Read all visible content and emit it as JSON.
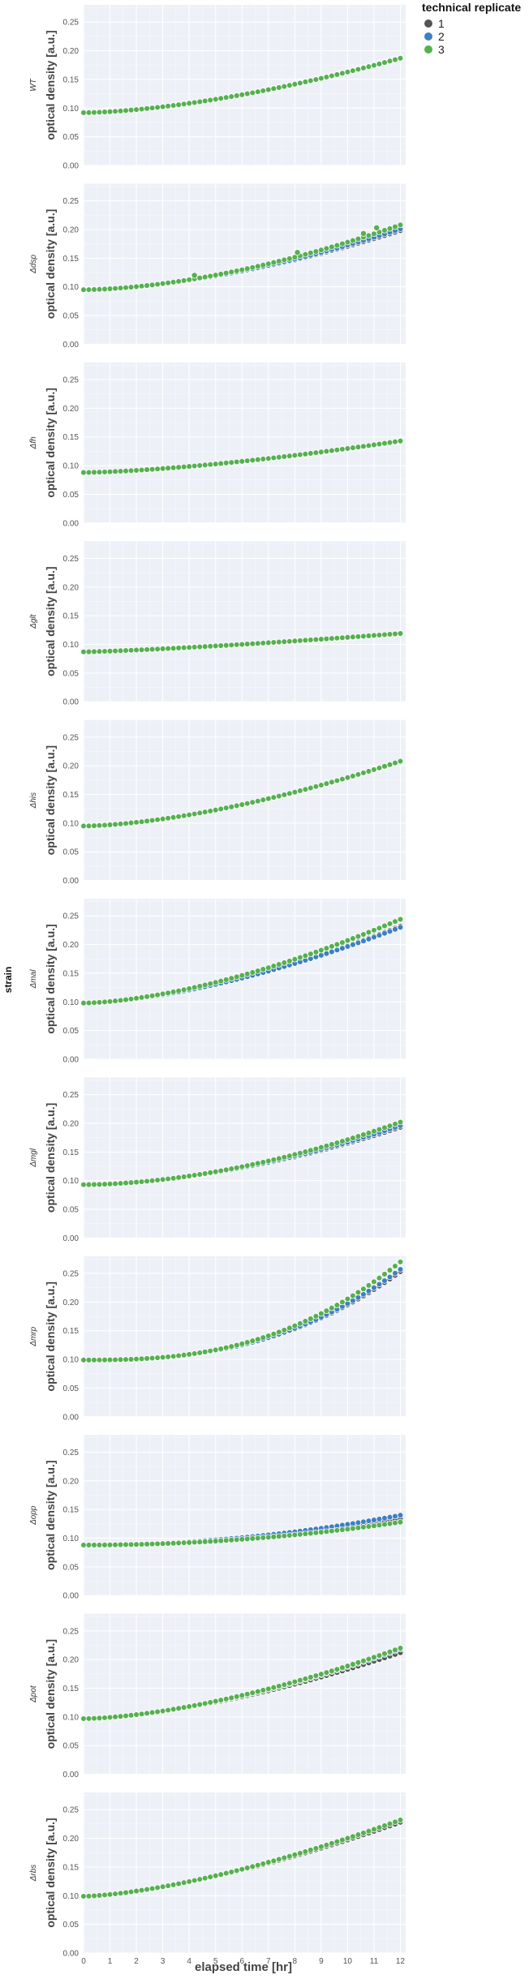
{
  "facet_title": "strain",
  "legend": {
    "title": "technical replicate",
    "entries": [
      {
        "label": "1",
        "color": "#555555"
      },
      {
        "label": "2",
        "color": "#3f7fc4"
      },
      {
        "label": "3",
        "color": "#56b04f"
      }
    ]
  },
  "colors": {
    "panel_bg": "#edf1f7",
    "grid": "#ffffff",
    "marker_edge": "#ffffff"
  },
  "chart_data": {
    "type": "scatter",
    "xlabel": "elapsed time [hr]",
    "ylabel": "optical density [a.u.]",
    "xlim": [
      0,
      12.2
    ],
    "ylim": [
      0,
      0.28
    ],
    "xticks": [
      0,
      1,
      2,
      3,
      4,
      5,
      6,
      7,
      8,
      9,
      10,
      11,
      12
    ],
    "yticks": [
      0.0,
      0.05,
      0.1,
      0.15,
      0.2,
      0.25
    ],
    "x_step_hr": 0.2,
    "grid": true,
    "legend_position": "top-right",
    "facets": [
      {
        "strain": "WT",
        "start": 0.092,
        "end": {
          "1": 0.188,
          "2": 0.188,
          "3": 0.187
        },
        "shape": 1.6
      },
      {
        "strain": "Δdsp",
        "start": 0.095,
        "end": {
          "1": 0.198,
          "2": 0.201,
          "3": 0.208
        },
        "shape": 1.7,
        "outliers": [
          {
            "x": 4.2,
            "y": 0.12,
            "replicate": "3"
          },
          {
            "x": 8.1,
            "y": 0.16,
            "replicate": "3"
          },
          {
            "x": 10.6,
            "y": 0.193,
            "replicate": "3"
          },
          {
            "x": 11.1,
            "y": 0.203,
            "replicate": "3"
          }
        ]
      },
      {
        "strain": "Δfh",
        "start": 0.088,
        "end": {
          "1": 0.141,
          "2": 0.142,
          "3": 0.143
        },
        "shape": 1.5
      },
      {
        "strain": "Δglt",
        "start": 0.087,
        "end": {
          "1": 0.118,
          "2": 0.118,
          "3": 0.119
        },
        "shape": 1.3
      },
      {
        "strain": "Δhis",
        "start": 0.095,
        "end": {
          "1": 0.207,
          "2": 0.207,
          "3": 0.208
        },
        "shape": 1.6
      },
      {
        "strain": "Δmal",
        "start": 0.098,
        "end": {
          "1": 0.232,
          "2": 0.23,
          "3": 0.244
        },
        "shape": 1.6
      },
      {
        "strain": "Δmgl",
        "start": 0.093,
        "end": {
          "1": 0.193,
          "2": 0.196,
          "3": 0.202
        },
        "shape": 1.8
      },
      {
        "strain": "Δmrp",
        "start": 0.099,
        "end": {
          "1": 0.253,
          "2": 0.257,
          "3": 0.27
        },
        "shape": 2.6
      },
      {
        "strain": "Δopp",
        "start": 0.088,
        "end": {
          "1": 0.134,
          "2": 0.14,
          "3": 0.128
        },
        "shape": 2.0
      },
      {
        "strain": "Δpot",
        "start": 0.097,
        "end": {
          "1": 0.212,
          "2": 0.218,
          "3": 0.22
        },
        "shape": 1.6
      },
      {
        "strain": "Δrbs",
        "start": 0.099,
        "end": {
          "1": 0.228,
          "2": 0.232,
          "3": 0.232
        },
        "shape": 1.5
      }
    ]
  }
}
